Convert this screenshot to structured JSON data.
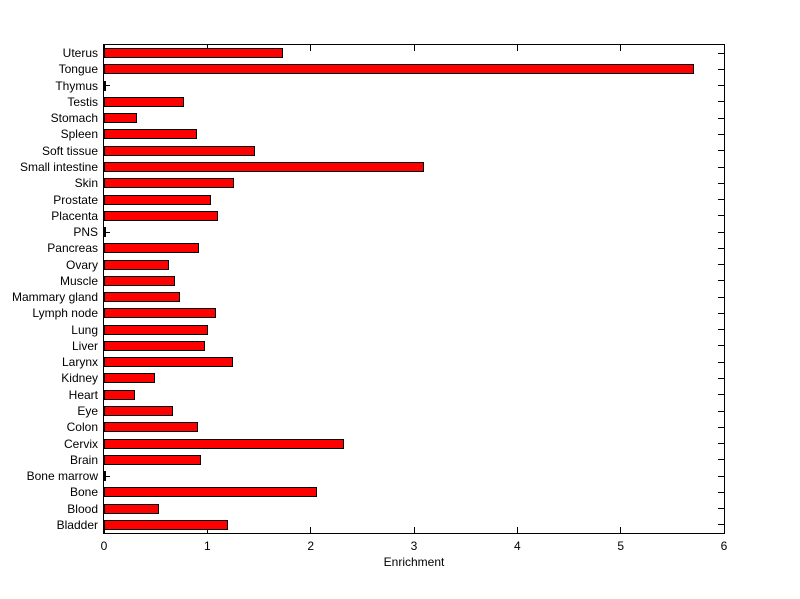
{
  "chart_data": {
    "type": "bar",
    "orientation": "horizontal",
    "title": "",
    "xlabel": "Enrichment",
    "ylabel": "",
    "xlim": [
      0,
      6
    ],
    "xticks": [
      0,
      1,
      2,
      3,
      4,
      5,
      6
    ],
    "grid": false,
    "legend": null,
    "box": true,
    "bar_color": "#ff0000",
    "bar_edge_color": "#000000",
    "background_color": "#ffffff",
    "categories": [
      "Uterus",
      "Tongue",
      "Thymus",
      "Testis",
      "Stomach",
      "Spleen",
      "Soft tissue",
      "Small intestine",
      "Skin",
      "Prostate",
      "Placenta",
      "PNS",
      "Pancreas",
      "Ovary",
      "Muscle",
      "Mammary gland",
      "Lymph node",
      "Lung",
      "Liver",
      "Larynx",
      "Kidney",
      "Heart",
      "Eye",
      "Colon",
      "Cervix",
      "Brain",
      "Bone marrow",
      "Bone",
      "Blood",
      "Bladder"
    ],
    "category_order": "top-to-bottom",
    "values": [
      1.73,
      5.71,
      0.02,
      0.77,
      0.32,
      0.9,
      1.46,
      3.1,
      1.26,
      1.04,
      1.1,
      0.02,
      0.92,
      0.63,
      0.69,
      0.74,
      1.08,
      1.01,
      0.98,
      1.25,
      0.49,
      0.3,
      0.67,
      0.91,
      2.32,
      0.94,
      0.02,
      2.06,
      0.53,
      1.2
    ]
  }
}
